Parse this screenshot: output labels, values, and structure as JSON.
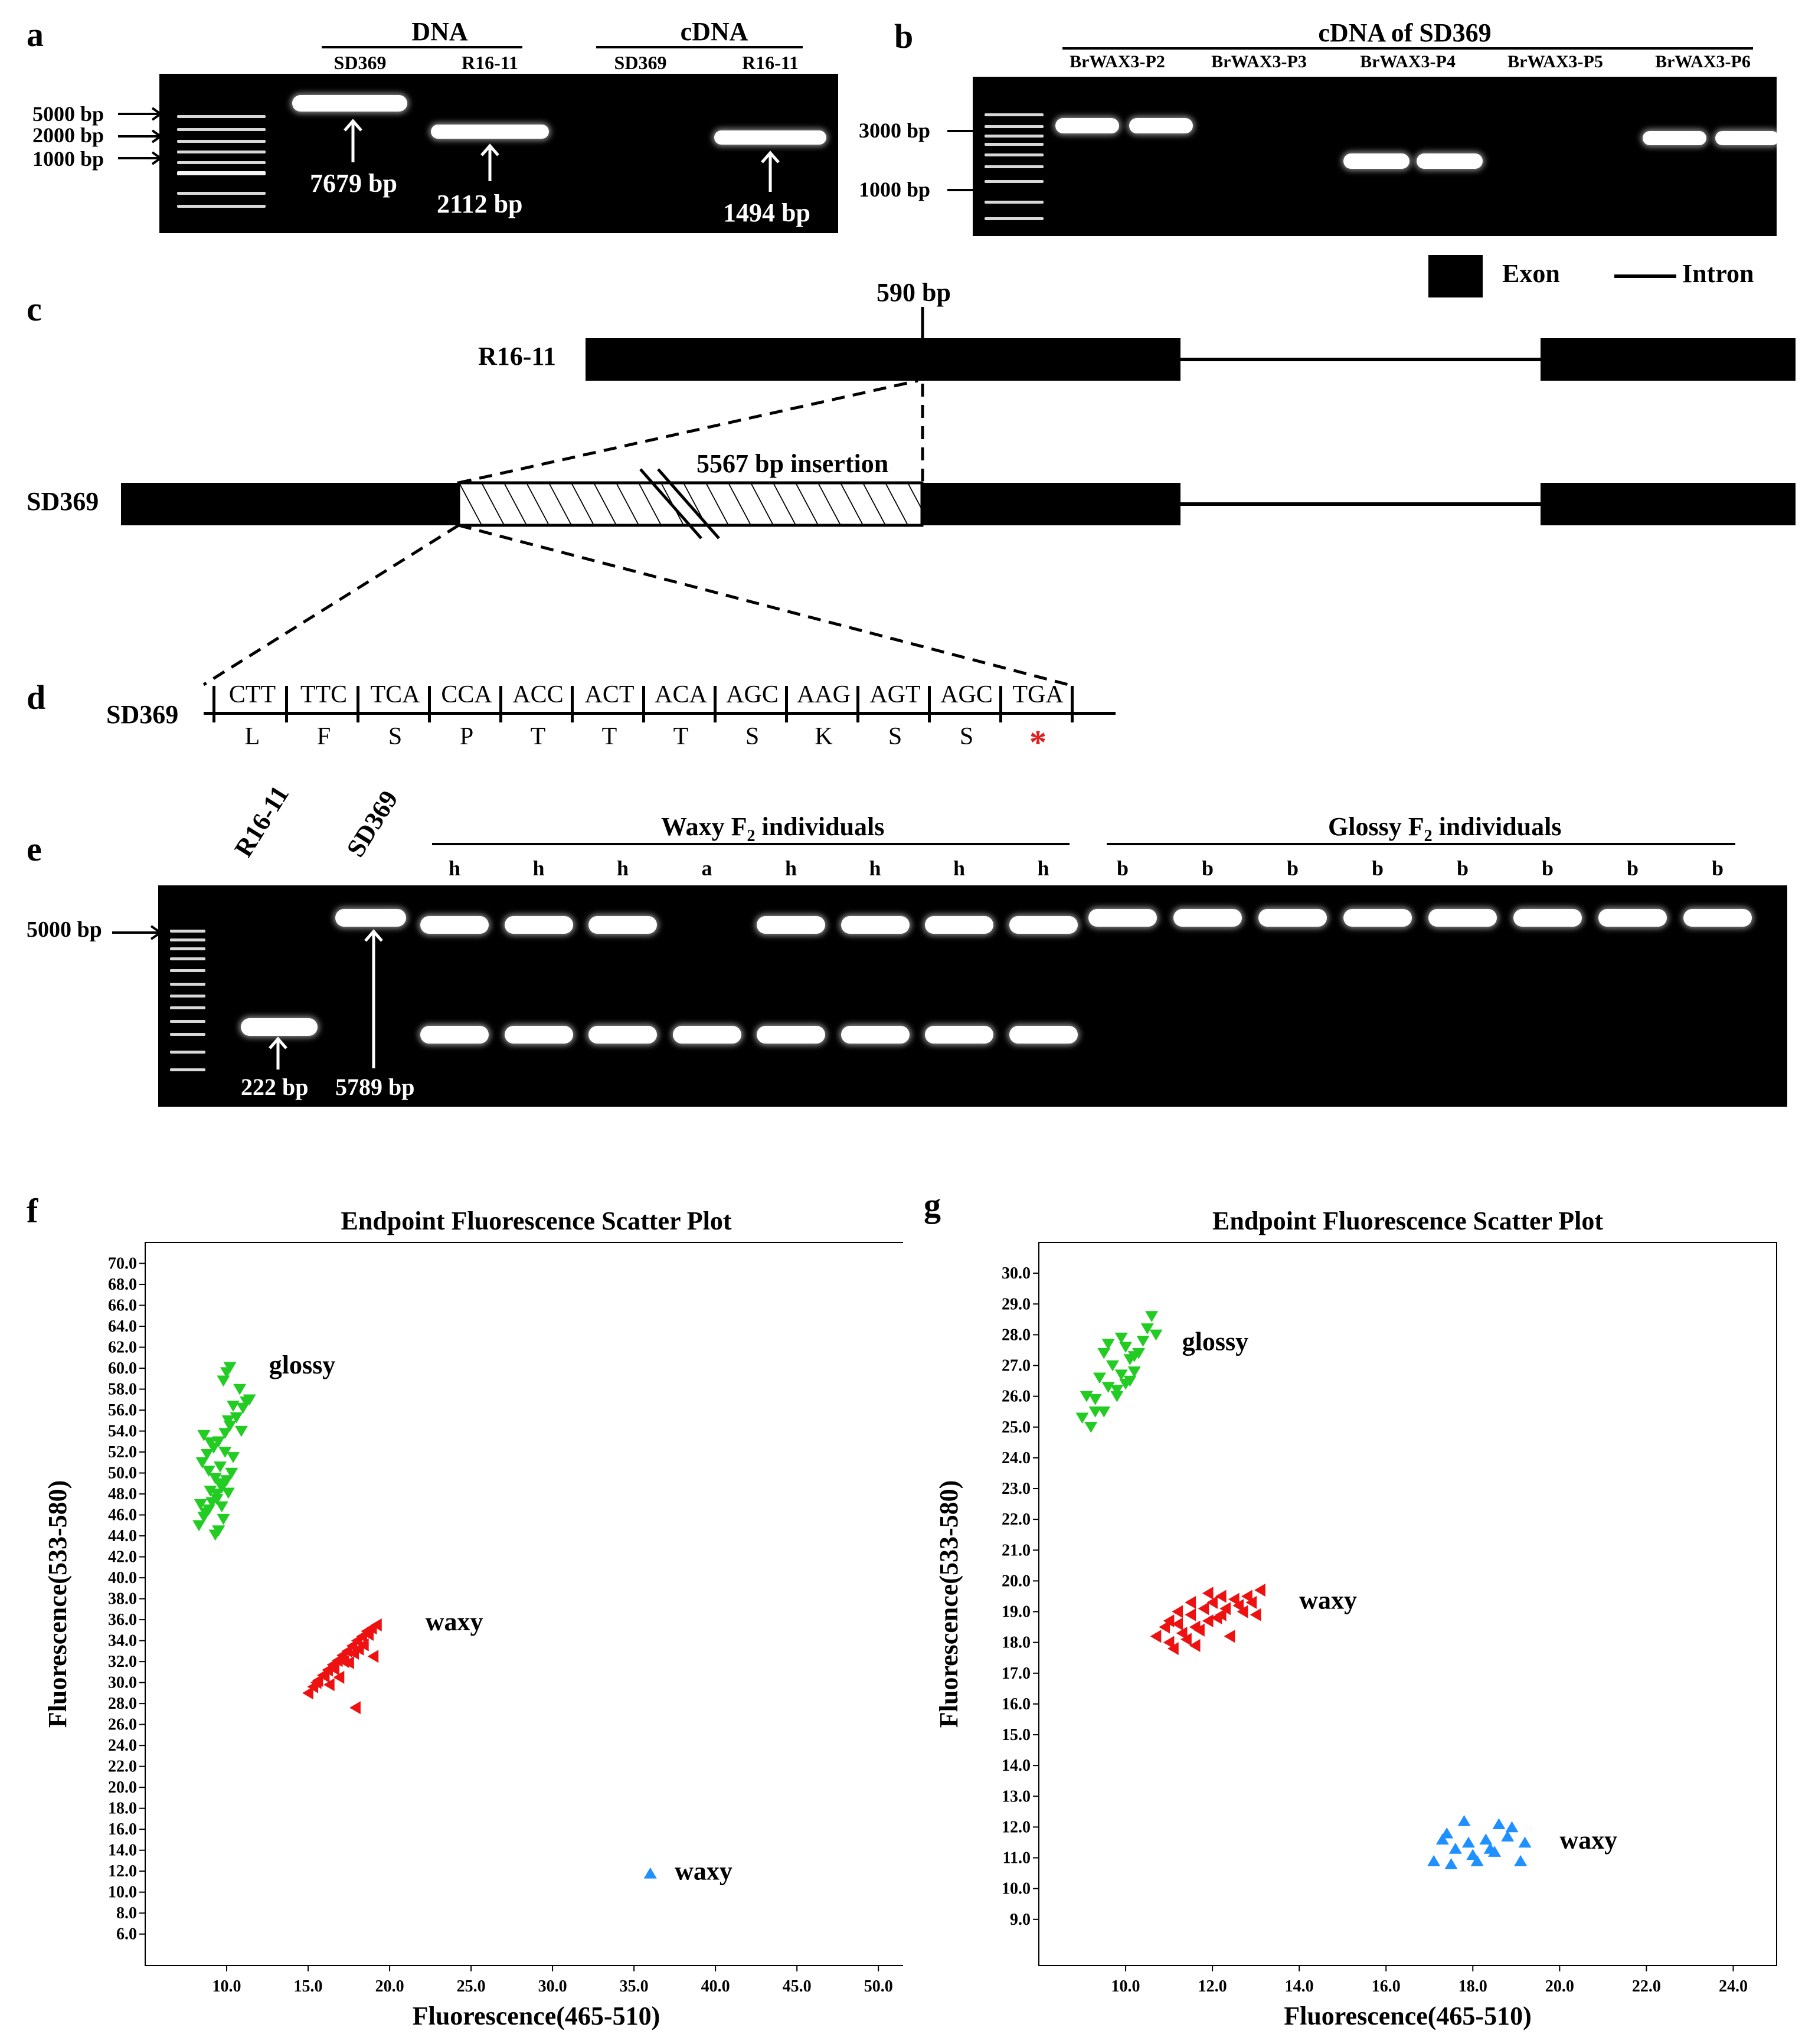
{
  "panels": {
    "a": {
      "label": "a",
      "group_labels": [
        "DNA",
        "cDNA"
      ],
      "lanes": [
        "SD369",
        "R16-11",
        "SD369",
        "R16-11"
      ],
      "markers": [
        "5000 bp",
        "2000 bp",
        "1000 bp"
      ],
      "band_sizes": [
        "7679 bp",
        "2112 bp",
        "1494 bp"
      ]
    },
    "b": {
      "label": "b",
      "title": "cDNA of SD369",
      "lanes": [
        "BrWAX3-P2",
        "BrWAX3-P3",
        "BrWAX3-P4",
        "BrWAX3-P5",
        "BrWAX3-P6"
      ],
      "markers": [
        "3000 bp",
        "1000 bp"
      ]
    },
    "c": {
      "label": "c",
      "legend": {
        "exon": "Exon",
        "intron": "Intron"
      },
      "position": "590 bp",
      "genotypes": [
        "R16-11",
        "SD369"
      ],
      "insertion": "5567 bp insertion"
    },
    "d": {
      "label": "d",
      "genotype": "SD369",
      "codons": [
        "CTT",
        "TTC",
        "TCA",
        "CCA",
        "ACC",
        "ACT",
        "ACA",
        "AGC",
        "AAG",
        "AGT",
        "AGC",
        "TGA"
      ],
      "amino_acids": [
        "L",
        "F",
        "S",
        "P",
        "T",
        "T",
        "T",
        "S",
        "K",
        "S",
        "S",
        "*"
      ],
      "stop_color": "#e41a1c"
    },
    "e": {
      "label": "e",
      "controls": [
        "R16-11",
        "SD369"
      ],
      "waxy_group": "Waxy F",
      "glossy_group": "Glossy F",
      "subscript": "2",
      "group_suffix": "individuals",
      "waxy_genotypes": [
        "h",
        "h",
        "h",
        "a",
        "h",
        "h",
        "h",
        "h"
      ],
      "glossy_genotypes": [
        "b",
        "b",
        "b",
        "b",
        "b",
        "b",
        "b",
        "b"
      ],
      "marker": "5000 bp",
      "band_sizes": [
        "222 bp",
        "5789 bp"
      ]
    },
    "f": {
      "label": "f"
    },
    "g": {
      "label": "g"
    }
  },
  "colors": {
    "glossy": "#22cc22",
    "waxy_red": "#ee1111",
    "waxy_blue": "#1e90ff"
  },
  "chart_data": [
    {
      "type": "scatter",
      "title": "Endpoint Fluorescence Scatter Plot",
      "xlabel": "Fluorescence(465-510)",
      "ylabel": "Fluorescence(533-580)",
      "xlim": [
        5.0,
        53.0
      ],
      "ylim": [
        3.0,
        72.0
      ],
      "xticks": [
        "10.0",
        "15.0",
        "20.0",
        "25.0",
        "30.0",
        "35.0",
        "40.0",
        "45.0",
        "50.0"
      ],
      "yticks": [
        "6.0",
        "8.0",
        "10.0",
        "12.0",
        "14.0",
        "16.0",
        "18.0",
        "20.0",
        "22.0",
        "24.0",
        "26.0",
        "28.0",
        "30.0",
        "32.0",
        "34.0",
        "36.0",
        "38.0",
        "40.0",
        "42.0",
        "44.0",
        "46.0",
        "48.0",
        "50.0",
        "52.0",
        "54.0",
        "56.0",
        "58.0",
        "60.0",
        "62.0",
        "64.0",
        "66.0",
        "68.0",
        "70.0"
      ],
      "series": [
        {
          "name": "glossy",
          "marker": "triangle-down",
          "color": "#22cc22",
          "x": [
            8.3,
            8.6,
            8.9,
            9.1,
            9.4,
            9.7,
            10.0,
            10.3,
            8.5,
            8.8,
            9.2,
            9.5,
            9.9,
            10.2,
            10.6,
            11.0,
            11.4,
            8.4,
            8.7,
            9.0,
            9.3,
            9.6,
            9.9,
            10.1,
            10.4,
            10.8,
            9.8,
            10.0,
            10.2,
            9.5,
            9.7,
            10.4,
            10.9,
            11.2,
            8.6,
            9.0,
            9.4,
            9.8,
            10.1,
            8.9,
            9.3,
            9.6
          ],
          "y": [
            45.0,
            45.8,
            46.5,
            47.2,
            48.0,
            48.6,
            49.3,
            50.0,
            51.0,
            51.8,
            52.4,
            53.0,
            53.8,
            54.5,
            55.3,
            56.2,
            57.0,
            47.0,
            46.2,
            48.3,
            49.5,
            50.6,
            52.0,
            55.0,
            56.4,
            58.0,
            58.8,
            59.6,
            60.1,
            44.5,
            46.8,
            51.5,
            54.0,
            56.8,
            53.6,
            52.9,
            47.5,
            45.6,
            48.1,
            50.2,
            44.1,
            49.0
          ]
        },
        {
          "name": "waxy",
          "marker": "triangle-left",
          "color": "#ee1111",
          "x": [
            15.0,
            15.3,
            15.6,
            15.9,
            16.2,
            16.5,
            16.8,
            17.1,
            17.4,
            17.7,
            18.0,
            18.3,
            18.6,
            18.9,
            19.2,
            15.5,
            16.0,
            16.6,
            17.2,
            17.8,
            18.4,
            16.3,
            16.9,
            17.5,
            18.1,
            18.7,
            17.9,
            19.0
          ],
          "y": [
            29.0,
            29.6,
            30.2,
            30.7,
            31.2,
            31.7,
            32.1,
            32.6,
            33.0,
            33.5,
            34.0,
            34.4,
            34.9,
            35.2,
            35.5,
            30.0,
            30.6,
            31.3,
            32.0,
            32.8,
            33.6,
            29.8,
            30.5,
            31.9,
            33.2,
            34.6,
            27.6,
            32.5
          ]
        },
        {
          "name": "waxy",
          "marker": "triangle-up",
          "color": "#1e90ff",
          "x": [
            36.0
          ],
          "y": [
            11.8
          ]
        }
      ],
      "annotations": [
        "glossy",
        "waxy",
        "waxy"
      ]
    },
    {
      "type": "scatter",
      "title": "Endpoint Fluorescence Scatter Plot",
      "xlabel": "Fluorescence(465-510)",
      "ylabel": "Fluorescence(533-580)",
      "xlim": [
        8.0,
        25.0
      ],
      "ylim": [
        7.5,
        31.0
      ],
      "xticks": [
        "10.0",
        "12.0",
        "14.0",
        "16.0",
        "18.0",
        "20.0",
        "22.0",
        "24.0"
      ],
      "yticks": [
        "9.0",
        "10.0",
        "11.0",
        "12.0",
        "13.0",
        "14.0",
        "15.0",
        "16.0",
        "17.0",
        "18.0",
        "19.0",
        "20.0",
        "21.0",
        "22.0",
        "23.0",
        "24.0",
        "25.0",
        "26.0",
        "27.0",
        "28.0",
        "29.0",
        "30.0"
      ],
      "series": [
        {
          "name": "glossy",
          "marker": "triangle-down",
          "color": "#22cc22",
          "x": [
            9.0,
            9.2,
            9.3,
            9.5,
            9.6,
            9.8,
            9.9,
            10.0,
            10.1,
            10.2,
            9.1,
            9.4,
            9.7,
            10.0,
            10.3,
            10.5,
            9.6,
            9.9,
            10.4,
            10.6,
            9.3,
            9.8,
            10.1,
            9.5,
            10.2,
            10.7
          ],
          "y": [
            25.3,
            25.0,
            25.9,
            25.5,
            26.3,
            26.0,
            26.7,
            26.4,
            27.2,
            26.8,
            26.0,
            26.6,
            27.0,
            27.6,
            27.4,
            28.2,
            27.7,
            27.9,
            27.8,
            28.6,
            25.5,
            26.2,
            26.5,
            27.4,
            27.3,
            28.0
          ]
        },
        {
          "name": "waxy",
          "marker": "triangle-left",
          "color": "#ee1111",
          "x": [
            10.7,
            10.9,
            11.0,
            11.2,
            11.3,
            11.5,
            11.6,
            11.8,
            11.9,
            12.0,
            12.2,
            12.3,
            12.5,
            12.6,
            12.8,
            12.9,
            13.1,
            11.1,
            11.4,
            11.7,
            12.1,
            12.4,
            11.2,
            11.5,
            11.9,
            12.7,
            13.0,
            11.0,
            11.6,
            12.2
          ],
          "y": [
            18.2,
            18.5,
            18.0,
            18.6,
            18.3,
            18.9,
            18.5,
            19.1,
            18.7,
            19.3,
            18.9,
            19.1,
            19.4,
            19.2,
            19.5,
            19.3,
            19.7,
            17.8,
            18.1,
            18.4,
            18.8,
            18.2,
            19.0,
            19.3,
            19.6,
            19.0,
            18.9,
            18.7,
            17.9,
            19.5
          ]
        },
        {
          "name": "waxy",
          "marker": "triangle-up",
          "color": "#1e90ff",
          "x": [
            17.1,
            17.3,
            17.5,
            17.6,
            17.8,
            17.9,
            18.1,
            18.3,
            18.4,
            18.6,
            18.8,
            18.9,
            19.1,
            19.2,
            17.4,
            18.0,
            18.5
          ],
          "y": [
            10.9,
            11.6,
            10.8,
            11.3,
            12.2,
            11.5,
            10.9,
            11.6,
            11.3,
            12.1,
            11.7,
            12.0,
            10.9,
            11.5,
            11.8,
            11.1,
            11.2
          ]
        }
      ],
      "annotations": [
        "glossy",
        "waxy",
        "waxy"
      ]
    }
  ]
}
